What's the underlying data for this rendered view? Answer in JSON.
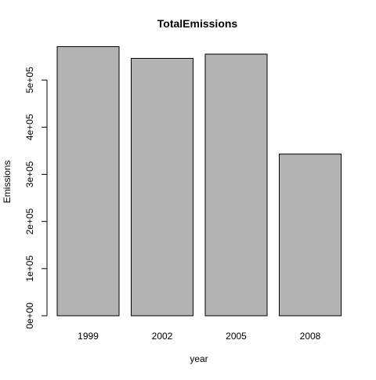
{
  "chart_data": {
    "type": "bar",
    "title": "TotalEmissions",
    "x_label": "year",
    "y_label": "Emissions",
    "categories": [
      "1999",
      "2002",
      "2005",
      "2008"
    ],
    "values": [
      571000,
      546000,
      555000,
      343000
    ],
    "color": "#b3b3b3",
    "ylim": [
      0,
      600000
    ],
    "yticks": [
      {
        "value": 0,
        "label": "0e+00"
      },
      {
        "value": 100000,
        "label": "1e+05"
      },
      {
        "value": 200000,
        "label": "2e+05"
      },
      {
        "value": 300000,
        "label": "3e+05"
      },
      {
        "value": 400000,
        "label": "4e+05"
      },
      {
        "value": 500000,
        "label": "5e+05"
      }
    ]
  }
}
